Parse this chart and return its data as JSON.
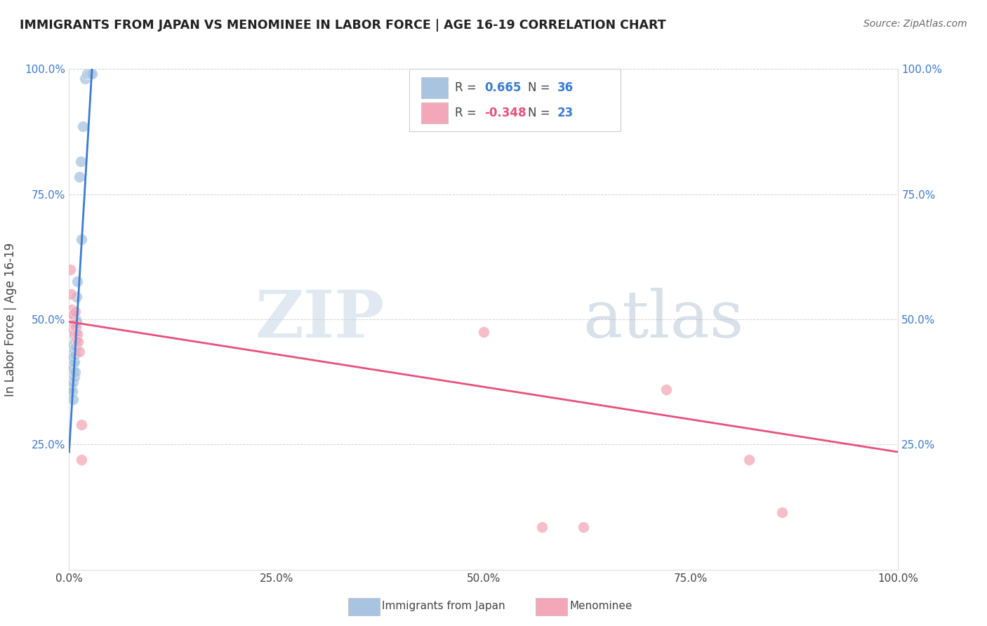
{
  "title": "IMMIGRANTS FROM JAPAN VS MENOMINEE IN LABOR FORCE | AGE 16-19 CORRELATION CHART",
  "source": "Source: ZipAtlas.com",
  "ylabel": "In Labor Force | Age 16-19",
  "xlim": [
    0,
    1.0
  ],
  "ylim": [
    0,
    1.0
  ],
  "xticks": [
    0.0,
    0.25,
    0.5,
    0.75,
    1.0
  ],
  "yticks": [
    0.0,
    0.25,
    0.5,
    0.75,
    1.0
  ],
  "xticklabels": [
    "0.0%",
    "25.0%",
    "50.0%",
    "75.0%",
    "100.0%"
  ],
  "yticklabels_left": [
    "",
    "25.0%",
    "50.0%",
    "75.0%",
    "100.0%"
  ],
  "yticklabels_right": [
    "",
    "25.0%",
    "50.0%",
    "75.0%",
    "100.0%"
  ],
  "blue_color": "#a8c4e0",
  "pink_color": "#f4a7b9",
  "blue_line_color": "#3a7bd5",
  "pink_line_color": "#e8517a",
  "watermark_zip": "ZIP",
  "watermark_atlas": "atlas",
  "blue_scatter_x": [
    0.002,
    0.002,
    0.003,
    0.003,
    0.003,
    0.004,
    0.004,
    0.004,
    0.004,
    0.005,
    0.005,
    0.005,
    0.005,
    0.005,
    0.006,
    0.006,
    0.006,
    0.006,
    0.007,
    0.007,
    0.007,
    0.007,
    0.008,
    0.008,
    0.008,
    0.009,
    0.009,
    0.01,
    0.012,
    0.014,
    0.015,
    0.017,
    0.019,
    0.022,
    0.025,
    0.028
  ],
  "blue_scatter_y": [
    0.395,
    0.36,
    0.43,
    0.4,
    0.365,
    0.44,
    0.415,
    0.39,
    0.355,
    0.45,
    0.425,
    0.4,
    0.375,
    0.34,
    0.465,
    0.44,
    0.415,
    0.385,
    0.48,
    0.455,
    0.43,
    0.395,
    0.5,
    0.475,
    0.445,
    0.545,
    0.495,
    0.575,
    0.785,
    0.815,
    0.66,
    0.885,
    0.98,
    0.99,
    0.99,
    0.99
  ],
  "pink_scatter_x": [
    0.001,
    0.002,
    0.003,
    0.004,
    0.004,
    0.005,
    0.005,
    0.006,
    0.006,
    0.007,
    0.008,
    0.009,
    0.01,
    0.011,
    0.012,
    0.015,
    0.015,
    0.5,
    0.57,
    0.62,
    0.72,
    0.82,
    0.86
  ],
  "pink_scatter_y": [
    0.6,
    0.55,
    0.52,
    0.51,
    0.48,
    0.51,
    0.49,
    0.49,
    0.47,
    0.515,
    0.485,
    0.46,
    0.47,
    0.455,
    0.435,
    0.29,
    0.22,
    0.475,
    0.085,
    0.085,
    0.36,
    0.22,
    0.115
  ],
  "blue_line_x0": 0.0,
  "blue_line_y0": 0.235,
  "blue_line_x1": 0.028,
  "blue_line_y1": 1.01,
  "pink_line_x0": 0.0,
  "pink_line_y0": 0.495,
  "pink_line_x1": 1.0,
  "pink_line_y1": 0.235
}
